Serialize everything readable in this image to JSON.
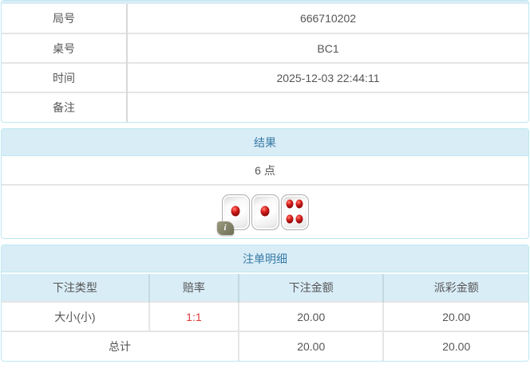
{
  "colors": {
    "panel_border": "#bce8f1",
    "header_bg": "#d9edf7",
    "header_text": "#3779a5",
    "body_text": "#555555",
    "odds_red": "#e03c3c"
  },
  "info_table": {
    "rows": [
      {
        "label": "局号",
        "value": "666710202"
      },
      {
        "label": "桌号",
        "value": "BC1"
      },
      {
        "label": "时间",
        "value": "2025-12-03 22:44:11"
      },
      {
        "label": "备注",
        "value": ""
      }
    ]
  },
  "result_panel": {
    "title": "结果",
    "points": "6 点",
    "dice": [
      1,
      1,
      4
    ],
    "info_badge": "i"
  },
  "bet_panel": {
    "title": "注单明细",
    "columns": [
      "下注类型",
      "赔率",
      "下注金额",
      "派彩金额"
    ],
    "rows": [
      {
        "bet_type": "大小(小)",
        "odds": "1:1",
        "bet_amount": "20.00",
        "payout_amount": "20.00"
      }
    ],
    "total": {
      "label": "总计",
      "bet_amount": "20.00",
      "payout_amount": "20.00"
    }
  }
}
